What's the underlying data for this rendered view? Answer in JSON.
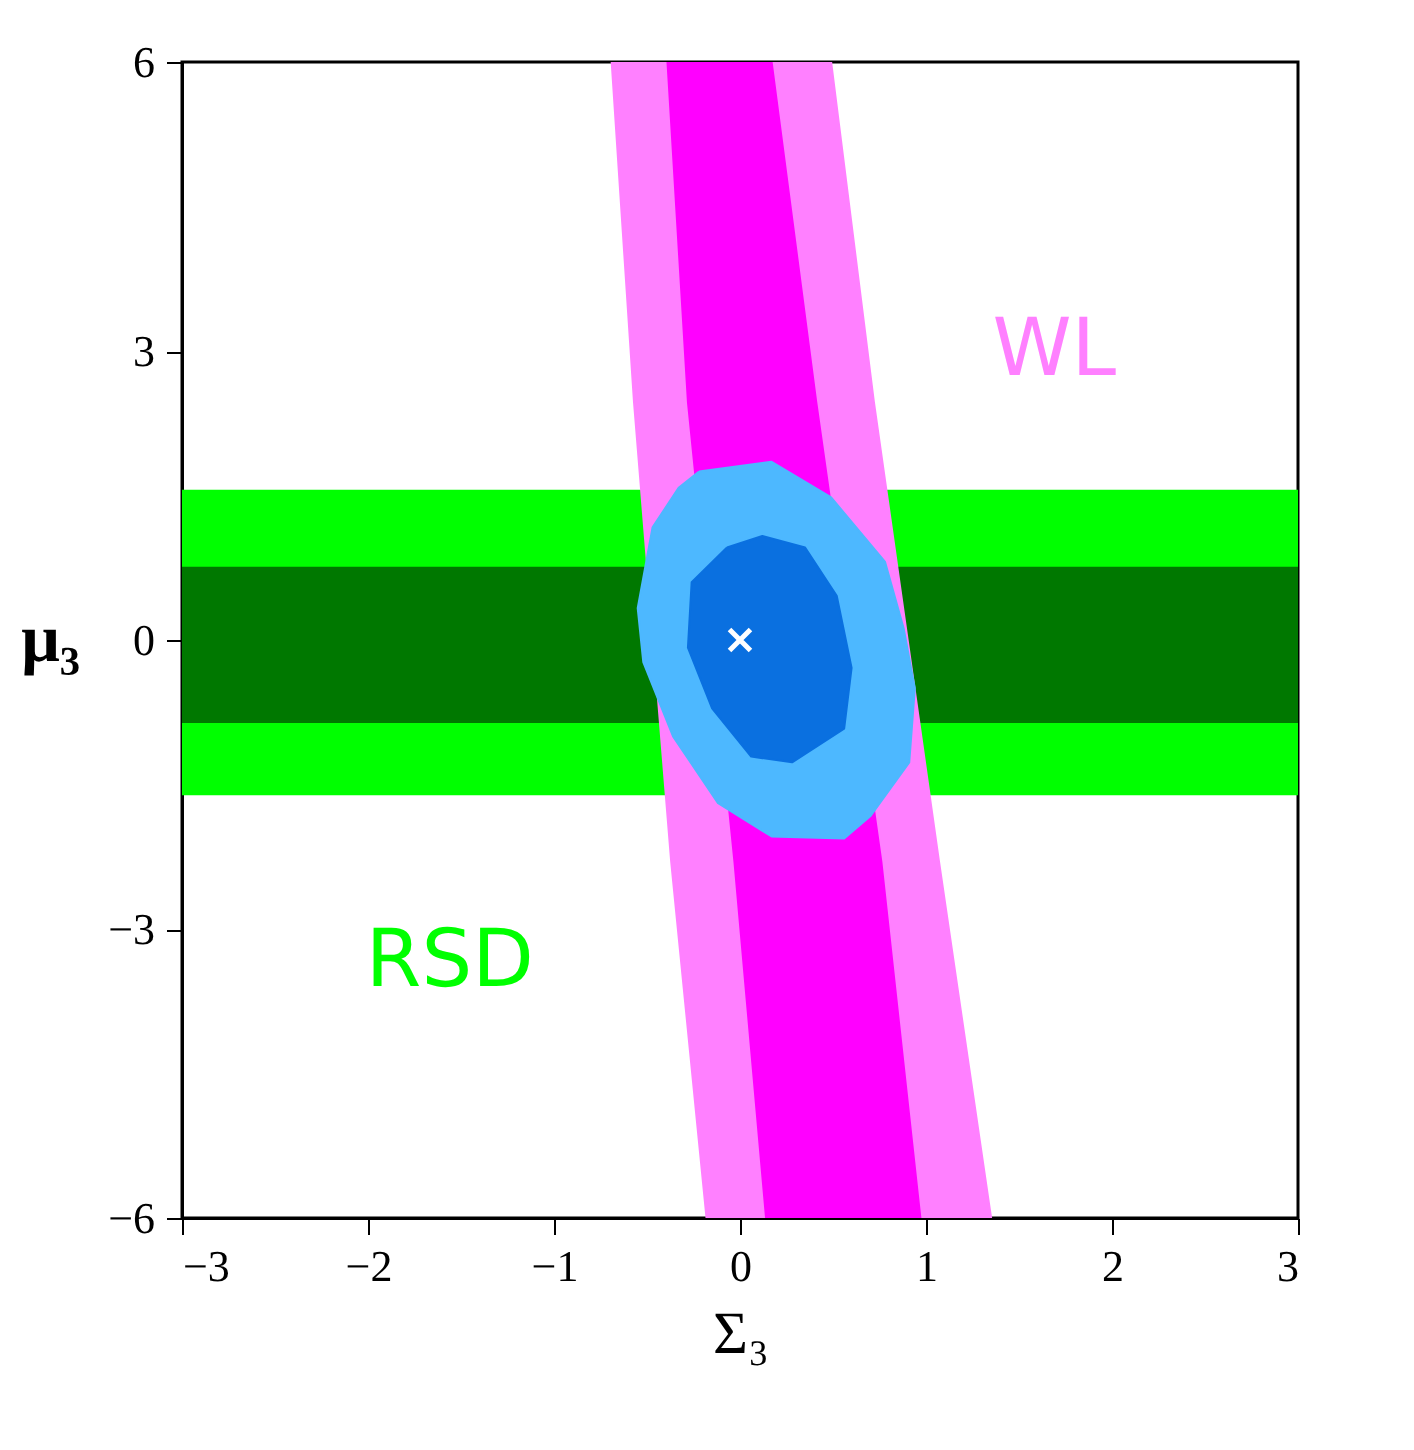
{
  "chart_data": {
    "type": "area",
    "xlabel": "Σ₃",
    "ylabel": "μ₃",
    "xlim": [
      -3,
      3
    ],
    "ylim": [
      -6,
      6
    ],
    "xticks": [
      -3,
      -2,
      -1,
      0,
      1,
      2,
      3
    ],
    "yticks": [
      -6,
      -3,
      0,
      3,
      6
    ],
    "grid": false,
    "series": [
      {
        "name": "RSD",
        "color": "#00ff00",
        "x": [
          -3,
          3,
          3,
          -3
        ],
        "values": [
          1.55,
          1.55,
          -1.6,
          -1.6
        ]
      },
      {
        "color": "#007800",
        "x": [
          -3,
          3,
          3,
          -3
        ],
        "values": [
          0.75,
          0.75,
          -0.85,
          -0.85
        ]
      },
      {
        "name": "WL",
        "color": "#ff80ff",
        "x": [
          -0.69,
          -0.57,
          -0.37,
          -0.18,
          1.35,
          1.07,
          0.72,
          0.49
        ],
        "values": [
          6,
          2.47,
          -2.3,
          -6,
          -6,
          -2.3,
          2.47,
          6
        ]
      },
      {
        "color": "#ff00ff",
        "x": [
          -0.39,
          -0.28,
          -0.03,
          0.14,
          0.97,
          0.76,
          0.41,
          0.17
        ],
        "values": [
          6,
          2.47,
          -2.3,
          -6,
          -6,
          -2.3,
          2.47,
          6
        ]
      },
      {
        "color": "#4db8ff",
        "x": [
          -0.22,
          0.17,
          0.49,
          0.78,
          0.88,
          0.94,
          0.91,
          0.7,
          0.56,
          0.17,
          -0.12,
          -0.36,
          -0.52,
          -0.55,
          -0.47,
          -0.33
        ],
        "values": [
          1.75,
          1.85,
          1.48,
          0.81,
          0.12,
          -0.5,
          -1.27,
          -1.83,
          -2.06,
          -2.04,
          -1.69,
          -1.0,
          -0.23,
          0.33,
          1.17,
          1.58
        ]
      },
      {
        "color": "#0a70e0",
        "x": [
          -0.07,
          0.12,
          0.35,
          0.52,
          0.6,
          0.56,
          0.28,
          0.06,
          -0.15,
          -0.28,
          -0.26
        ],
        "values": [
          0.96,
          1.08,
          0.96,
          0.46,
          -0.29,
          -0.92,
          -1.27,
          -1.21,
          -0.71,
          -0.08,
          0.6
        ]
      },
      {
        "type": "scatter",
        "marker": "cross",
        "color": "#ffffff",
        "x": [
          0
        ],
        "values": [
          0
        ]
      }
    ]
  }
}
